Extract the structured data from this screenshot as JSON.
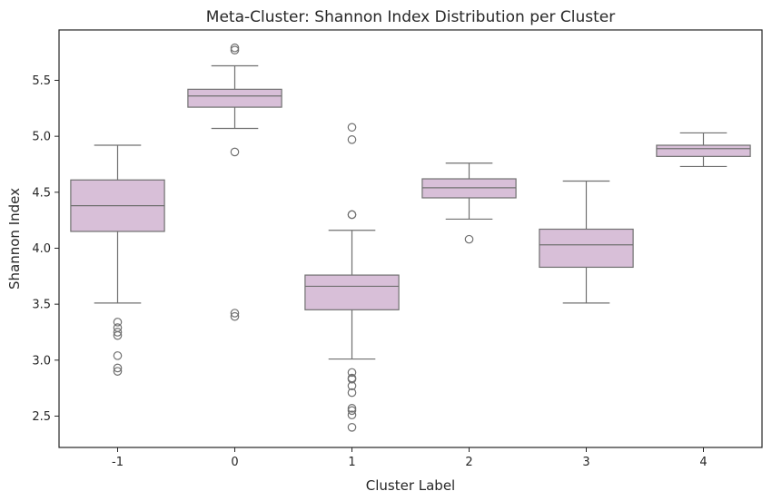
{
  "chart_data": {
    "type": "box",
    "title": "Meta-Cluster: Shannon Index Distribution per Cluster",
    "xlabel": "Cluster Label",
    "ylabel": "Shannon Index",
    "categories": [
      "-1",
      "0",
      "1",
      "2",
      "3",
      "4"
    ],
    "ylim": [
      2.22,
      5.95
    ],
    "yticks": [
      2.5,
      3.0,
      3.5,
      4.0,
      4.5,
      5.0,
      5.5
    ],
    "ytick_labels": [
      "2.5",
      "3.0",
      "3.5",
      "4.0",
      "4.5",
      "5.0",
      "5.5"
    ],
    "grid": false,
    "box_color": "#d8bfd8",
    "line_color": "#707070",
    "boxes": [
      {
        "category": "-1",
        "whisker_low": 3.51,
        "q1": 4.15,
        "median": 4.38,
        "q3": 4.61,
        "whisker_high": 4.92,
        "outliers": [
          3.34,
          3.29,
          3.25,
          3.22,
          3.04,
          2.93,
          2.9
        ]
      },
      {
        "category": "0",
        "whisker_low": 5.07,
        "q1": 5.26,
        "median": 5.36,
        "q3": 5.42,
        "whisker_high": 5.63,
        "outliers": [
          5.79,
          5.77,
          4.86,
          3.42,
          3.39
        ]
      },
      {
        "category": "1",
        "whisker_low": 3.01,
        "q1": 3.45,
        "median": 3.66,
        "q3": 3.76,
        "whisker_high": 4.16,
        "outliers": [
          5.08,
          4.97,
          4.3,
          4.3,
          2.89,
          2.84,
          2.83,
          2.77,
          2.71,
          2.57,
          2.55,
          2.51,
          2.4
        ]
      },
      {
        "category": "2",
        "whisker_low": 4.26,
        "q1": 4.45,
        "median": 4.54,
        "q3": 4.62,
        "whisker_high": 4.76,
        "outliers": [
          4.08
        ]
      },
      {
        "category": "3",
        "whisker_low": 3.51,
        "q1": 3.83,
        "median": 4.03,
        "q3": 4.17,
        "whisker_high": 4.6,
        "outliers": []
      },
      {
        "category": "4",
        "whisker_low": 4.73,
        "q1": 4.82,
        "median": 4.89,
        "q3": 4.92,
        "whisker_high": 5.03,
        "outliers": []
      }
    ]
  }
}
